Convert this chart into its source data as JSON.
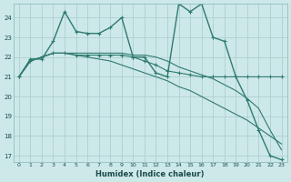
{
  "xlabel": "Humidex (Indice chaleur)",
  "bg_color": "#cde8e8",
  "grid_color": "#aed0d0",
  "line_color": "#2e7b6e",
  "xlim": [
    -0.5,
    23.5
  ],
  "ylim": [
    16.7,
    24.7
  ],
  "yticks": [
    17,
    18,
    19,
    20,
    21,
    22,
    23,
    24
  ],
  "xticks": [
    0,
    1,
    2,
    3,
    4,
    5,
    6,
    7,
    8,
    9,
    10,
    11,
    12,
    13,
    14,
    15,
    16,
    17,
    18,
    19,
    20,
    21,
    22,
    23
  ],
  "series": [
    {
      "y": [
        21.0,
        21.9,
        21.9,
        22.8,
        24.3,
        23.3,
        23.2,
        23.2,
        23.5,
        24.0,
        22.0,
        22.0,
        21.2,
        21.0,
        24.7,
        24.3,
        24.7,
        23.0,
        22.8,
        21.0,
        19.8,
        18.3,
        17.0,
        16.8
      ],
      "marker": "+",
      "lw": 1.0
    },
    {
      "y": [
        21.0,
        21.8,
        22.0,
        22.2,
        22.2,
        22.1,
        22.1,
        22.1,
        22.1,
        22.1,
        22.0,
        21.8,
        21.6,
        21.3,
        21.2,
        21.1,
        21.0,
        21.0,
        21.0,
        21.0,
        21.0,
        21.0,
        21.0,
        21.0
      ],
      "marker": "+",
      "lw": 0.8
    },
    {
      "y": [
        21.0,
        21.8,
        22.0,
        22.2,
        22.2,
        22.2,
        22.2,
        22.2,
        22.2,
        22.2,
        22.1,
        22.1,
        22.0,
        21.8,
        21.5,
        21.3,
        21.1,
        20.9,
        20.6,
        20.3,
        19.9,
        19.4,
        18.3,
        17.3
      ],
      "marker": null,
      "lw": 0.8
    },
    {
      "y": [
        21.0,
        21.8,
        22.0,
        22.2,
        22.2,
        22.1,
        22.0,
        21.9,
        21.8,
        21.6,
        21.4,
        21.2,
        21.0,
        20.8,
        20.5,
        20.3,
        20.0,
        19.7,
        19.4,
        19.1,
        18.8,
        18.4,
        18.0,
        17.6
      ],
      "marker": null,
      "lw": 0.8
    }
  ]
}
